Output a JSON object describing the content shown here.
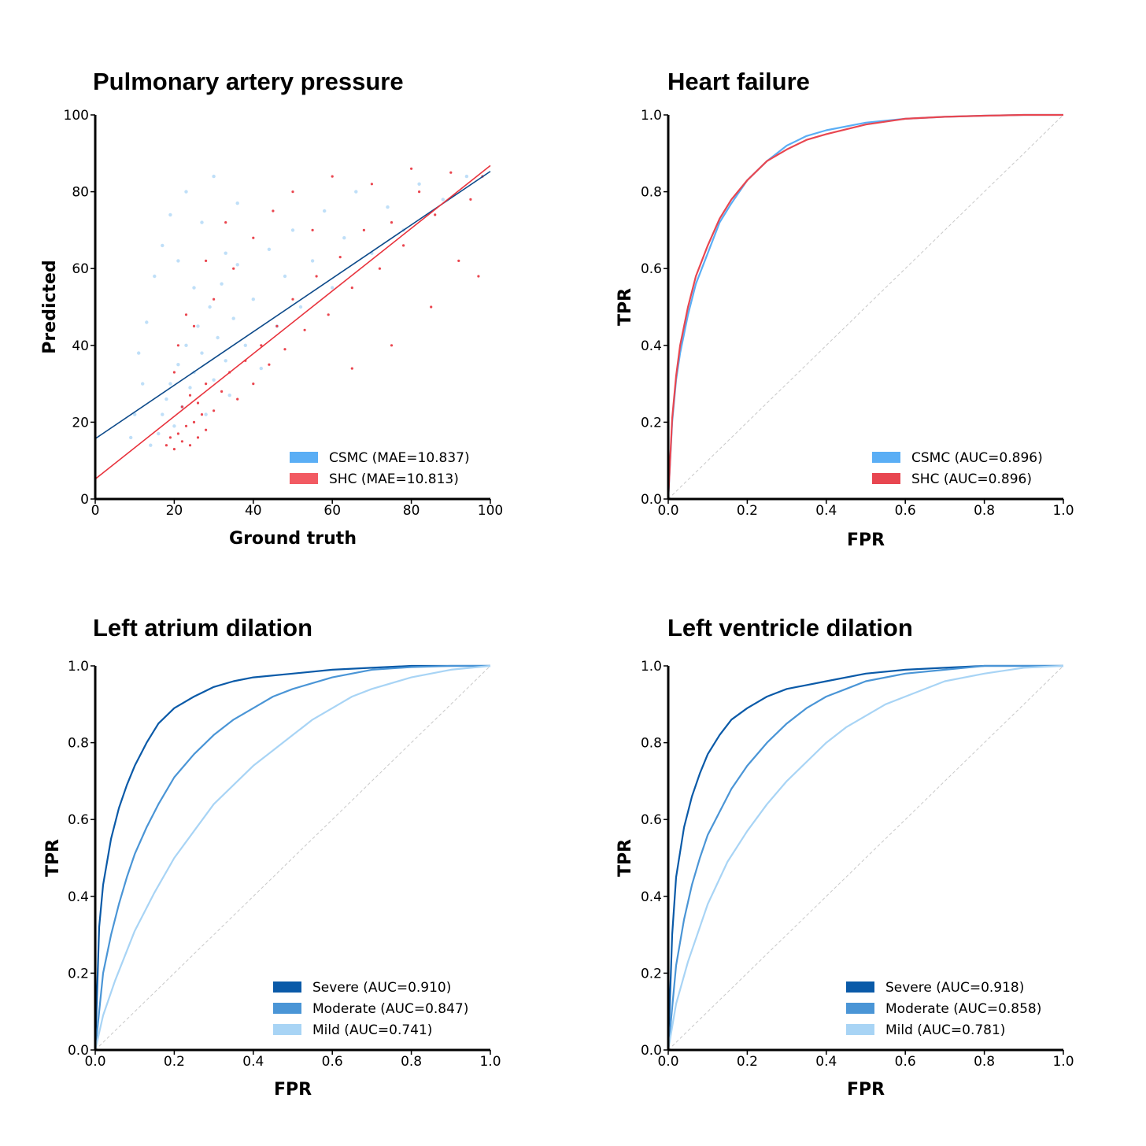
{
  "colors": {
    "csmc_scatter": "#a9d4f5",
    "csmc_legend": "#5aaef5",
    "csmc_fit": "#0d4a8a",
    "shc": "#e8323c",
    "shc_legend": "#f25a62",
    "hf_csmc": "#5aaef5",
    "hf_shc": "#e84650",
    "severe": "#0a5aa8",
    "moderate": "#4a95d6",
    "mild": "#a8d4f5",
    "diagonal": "#c8c8c8"
  },
  "chart_data": [
    {
      "type": "scatter",
      "title": "Pulmonary artery pressure",
      "xlabel": "Ground truth",
      "ylabel": "Predicted",
      "xlim": [
        0,
        100
      ],
      "ylim": [
        0,
        100
      ],
      "xticks": [
        "0",
        "20",
        "40",
        "60",
        "80",
        "100"
      ],
      "yticks": [
        "0",
        "20",
        "40",
        "60",
        "80",
        "100"
      ],
      "grid": false,
      "legend_position": "bottom-right",
      "series": [
        {
          "name": "CSMC (MAE=10.837)",
          "fit_line": [
            [
              0,
              15.7
            ],
            [
              100,
              85.3
            ]
          ],
          "points": [
            [
              14,
              14
            ],
            [
              16,
              17
            ],
            [
              17,
              22
            ],
            [
              18,
              26
            ],
            [
              19,
              30
            ],
            [
              20,
              19
            ],
            [
              21,
              35
            ],
            [
              22,
              24
            ],
            [
              23,
              40
            ],
            [
              24,
              29
            ],
            [
              25,
              33
            ],
            [
              26,
              45
            ],
            [
              27,
              38
            ],
            [
              28,
              22
            ],
            [
              29,
              50
            ],
            [
              30,
              31
            ],
            [
              31,
              42
            ],
            [
              32,
              56
            ],
            [
              33,
              36
            ],
            [
              34,
              27
            ],
            [
              35,
              47
            ],
            [
              36,
              61
            ],
            [
              38,
              40
            ],
            [
              40,
              52
            ],
            [
              42,
              34
            ],
            [
              44,
              65
            ],
            [
              46,
              45
            ],
            [
              48,
              58
            ],
            [
              50,
              70
            ],
            [
              52,
              50
            ],
            [
              55,
              62
            ],
            [
              58,
              75
            ],
            [
              60,
              55
            ],
            [
              63,
              68
            ],
            [
              66,
              80
            ],
            [
              70,
              64
            ],
            [
              74,
              76
            ],
            [
              78,
              70
            ],
            [
              82,
              82
            ],
            [
              88,
              78
            ],
            [
              94,
              84
            ],
            [
              12,
              30
            ],
            [
              13,
              46
            ],
            [
              15,
              58
            ],
            [
              17,
              66
            ],
            [
              19,
              74
            ],
            [
              21,
              62
            ],
            [
              23,
              80
            ],
            [
              25,
              55
            ],
            [
              27,
              72
            ],
            [
              30,
              84
            ],
            [
              33,
              64
            ],
            [
              36,
              77
            ],
            [
              10,
              22
            ],
            [
              11,
              38
            ],
            [
              9,
              16
            ]
          ]
        },
        {
          "name": "SHC (MAE=10.813)",
          "fit_line": [
            [
              0,
              5.2
            ],
            [
              100,
              86.8
            ]
          ],
          "points": [
            [
              18,
              14
            ],
            [
              19,
              16
            ],
            [
              20,
              13
            ],
            [
              21,
              17
            ],
            [
              22,
              15
            ],
            [
              23,
              19
            ],
            [
              24,
              14
            ],
            [
              25,
              20
            ],
            [
              26,
              16
            ],
            [
              27,
              22
            ],
            [
              28,
              18
            ],
            [
              22,
              24
            ],
            [
              24,
              27
            ],
            [
              26,
              25
            ],
            [
              28,
              30
            ],
            [
              30,
              23
            ],
            [
              32,
              28
            ],
            [
              34,
              33
            ],
            [
              36,
              26
            ],
            [
              38,
              36
            ],
            [
              40,
              30
            ],
            [
              42,
              40
            ],
            [
              44,
              35
            ],
            [
              46,
              45
            ],
            [
              48,
              39
            ],
            [
              50,
              52
            ],
            [
              53,
              44
            ],
            [
              56,
              58
            ],
            [
              59,
              48
            ],
            [
              62,
              63
            ],
            [
              65,
              55
            ],
            [
              68,
              70
            ],
            [
              72,
              60
            ],
            [
              75,
              72
            ],
            [
              78,
              66
            ],
            [
              82,
              80
            ],
            [
              86,
              74
            ],
            [
              90,
              85
            ],
            [
              95,
              78
            ],
            [
              98,
              84
            ],
            [
              30,
              52
            ],
            [
              35,
              60
            ],
            [
              40,
              68
            ],
            [
              45,
              75
            ],
            [
              50,
              80
            ],
            [
              55,
              70
            ],
            [
              60,
              84
            ],
            [
              70,
              82
            ],
            [
              80,
              86
            ],
            [
              25,
              45
            ],
            [
              28,
              62
            ],
            [
              33,
              72
            ],
            [
              20,
              33
            ],
            [
              21,
              40
            ],
            [
              23,
              48
            ],
            [
              92,
              62
            ],
            [
              97,
              58
            ],
            [
              85,
              50
            ],
            [
              75,
              40
            ],
            [
              65,
              34
            ]
          ]
        }
      ]
    },
    {
      "type": "line",
      "title": "Heart failure",
      "xlabel": "FPR",
      "ylabel": "TPR",
      "xlim": [
        0,
        1
      ],
      "ylim": [
        0,
        1
      ],
      "xticks": [
        "0.0",
        "0.2",
        "0.4",
        "0.6",
        "0.8",
        "1.0"
      ],
      "yticks": [
        "0.0",
        "0.2",
        "0.4",
        "0.6",
        "0.8",
        "1.0"
      ],
      "grid": false,
      "legend_position": "bottom-right",
      "series": [
        {
          "name": "CSMC (AUC=0.896)",
          "x": [
            0,
            0.01,
            0.02,
            0.03,
            0.05,
            0.07,
            0.1,
            0.13,
            0.16,
            0.2,
            0.25,
            0.3,
            0.35,
            0.4,
            0.5,
            0.6,
            0.7,
            0.8,
            0.9,
            1.0
          ],
          "y": [
            0,
            0.2,
            0.31,
            0.38,
            0.48,
            0.56,
            0.64,
            0.72,
            0.77,
            0.83,
            0.88,
            0.92,
            0.945,
            0.96,
            0.98,
            0.99,
            0.995,
            0.998,
            1.0,
            1.0
          ]
        },
        {
          "name": "SHC (AUC=0.896)",
          "x": [
            0,
            0.01,
            0.02,
            0.03,
            0.05,
            0.07,
            0.1,
            0.13,
            0.16,
            0.2,
            0.25,
            0.3,
            0.35,
            0.4,
            0.5,
            0.6,
            0.7,
            0.8,
            0.9,
            1.0
          ],
          "y": [
            0,
            0.21,
            0.32,
            0.4,
            0.5,
            0.58,
            0.66,
            0.73,
            0.78,
            0.83,
            0.88,
            0.91,
            0.935,
            0.95,
            0.975,
            0.99,
            0.995,
            0.998,
            1.0,
            1.0
          ]
        }
      ]
    },
    {
      "type": "line",
      "title": "Left atrium dilation",
      "xlabel": "FPR",
      "ylabel": "TPR",
      "xlim": [
        0,
        1
      ],
      "ylim": [
        0,
        1
      ],
      "xticks": [
        "0.0",
        "0.2",
        "0.4",
        "0.6",
        "0.8",
        "1.0"
      ],
      "yticks": [
        "0.0",
        "0.2",
        "0.4",
        "0.6",
        "0.8",
        "1.0"
      ],
      "grid": false,
      "legend_position": "bottom-right",
      "series": [
        {
          "name": "Severe (AUC=0.910)",
          "x": [
            0,
            0.01,
            0.02,
            0.04,
            0.06,
            0.08,
            0.1,
            0.13,
            0.16,
            0.2,
            0.25,
            0.3,
            0.35,
            0.4,
            0.5,
            0.6,
            0.7,
            0.8,
            0.9,
            1.0
          ],
          "y": [
            0,
            0.32,
            0.43,
            0.55,
            0.63,
            0.69,
            0.74,
            0.8,
            0.85,
            0.89,
            0.92,
            0.945,
            0.96,
            0.97,
            0.98,
            0.99,
            0.995,
            1.0,
            1.0,
            1.0
          ]
        },
        {
          "name": "Moderate (AUC=0.847)",
          "x": [
            0,
            0.02,
            0.04,
            0.06,
            0.08,
            0.1,
            0.13,
            0.16,
            0.2,
            0.25,
            0.3,
            0.35,
            0.4,
            0.45,
            0.5,
            0.6,
            0.7,
            0.8,
            0.9,
            1.0
          ],
          "y": [
            0,
            0.2,
            0.3,
            0.38,
            0.45,
            0.51,
            0.58,
            0.64,
            0.71,
            0.77,
            0.82,
            0.86,
            0.89,
            0.92,
            0.94,
            0.97,
            0.99,
            0.997,
            1.0,
            1.0
          ]
        },
        {
          "name": "Mild (AUC=0.741)",
          "x": [
            0,
            0.02,
            0.05,
            0.1,
            0.15,
            0.2,
            0.25,
            0.3,
            0.35,
            0.4,
            0.45,
            0.5,
            0.55,
            0.6,
            0.65,
            0.7,
            0.8,
            0.9,
            1.0
          ],
          "y": [
            0,
            0.09,
            0.18,
            0.31,
            0.41,
            0.5,
            0.57,
            0.64,
            0.69,
            0.74,
            0.78,
            0.82,
            0.86,
            0.89,
            0.92,
            0.94,
            0.97,
            0.99,
            1.0
          ]
        }
      ]
    },
    {
      "type": "line",
      "title": "Left ventricle dilation",
      "xlabel": "FPR",
      "ylabel": "TPR",
      "xlim": [
        0,
        1
      ],
      "ylim": [
        0,
        1
      ],
      "xticks": [
        "0.0",
        "0.2",
        "0.4",
        "0.6",
        "0.8",
        "1.0"
      ],
      "yticks": [
        "0.0",
        "0.2",
        "0.4",
        "0.6",
        "0.8",
        "1.0"
      ],
      "grid": false,
      "legend_position": "bottom-right",
      "series": [
        {
          "name": "Severe (AUC=0.918)",
          "x": [
            0,
            0.01,
            0.02,
            0.04,
            0.06,
            0.08,
            0.1,
            0.13,
            0.16,
            0.2,
            0.25,
            0.3,
            0.35,
            0.4,
            0.5,
            0.6,
            0.7,
            0.8,
            0.9,
            1.0
          ],
          "y": [
            0,
            0.3,
            0.45,
            0.58,
            0.66,
            0.72,
            0.77,
            0.82,
            0.86,
            0.89,
            0.92,
            0.94,
            0.95,
            0.96,
            0.98,
            0.99,
            0.995,
            1.0,
            1.0,
            1.0
          ]
        },
        {
          "name": "Moderate (AUC=0.858)",
          "x": [
            0,
            0.02,
            0.04,
            0.06,
            0.08,
            0.1,
            0.13,
            0.16,
            0.2,
            0.25,
            0.3,
            0.35,
            0.4,
            0.45,
            0.5,
            0.6,
            0.7,
            0.8,
            0.9,
            1.0
          ],
          "y": [
            0,
            0.22,
            0.34,
            0.43,
            0.5,
            0.56,
            0.62,
            0.68,
            0.74,
            0.8,
            0.85,
            0.89,
            0.92,
            0.94,
            0.96,
            0.98,
            0.99,
            1.0,
            1.0,
            1.0
          ]
        },
        {
          "name": "Mild (AUC=0.781)",
          "x": [
            0,
            0.02,
            0.05,
            0.08,
            0.1,
            0.15,
            0.2,
            0.25,
            0.3,
            0.35,
            0.4,
            0.45,
            0.5,
            0.55,
            0.6,
            0.7,
            0.8,
            0.9,
            1.0
          ],
          "y": [
            0,
            0.12,
            0.23,
            0.32,
            0.38,
            0.49,
            0.57,
            0.64,
            0.7,
            0.75,
            0.8,
            0.84,
            0.87,
            0.9,
            0.92,
            0.96,
            0.98,
            0.995,
            1.0
          ]
        }
      ]
    }
  ]
}
